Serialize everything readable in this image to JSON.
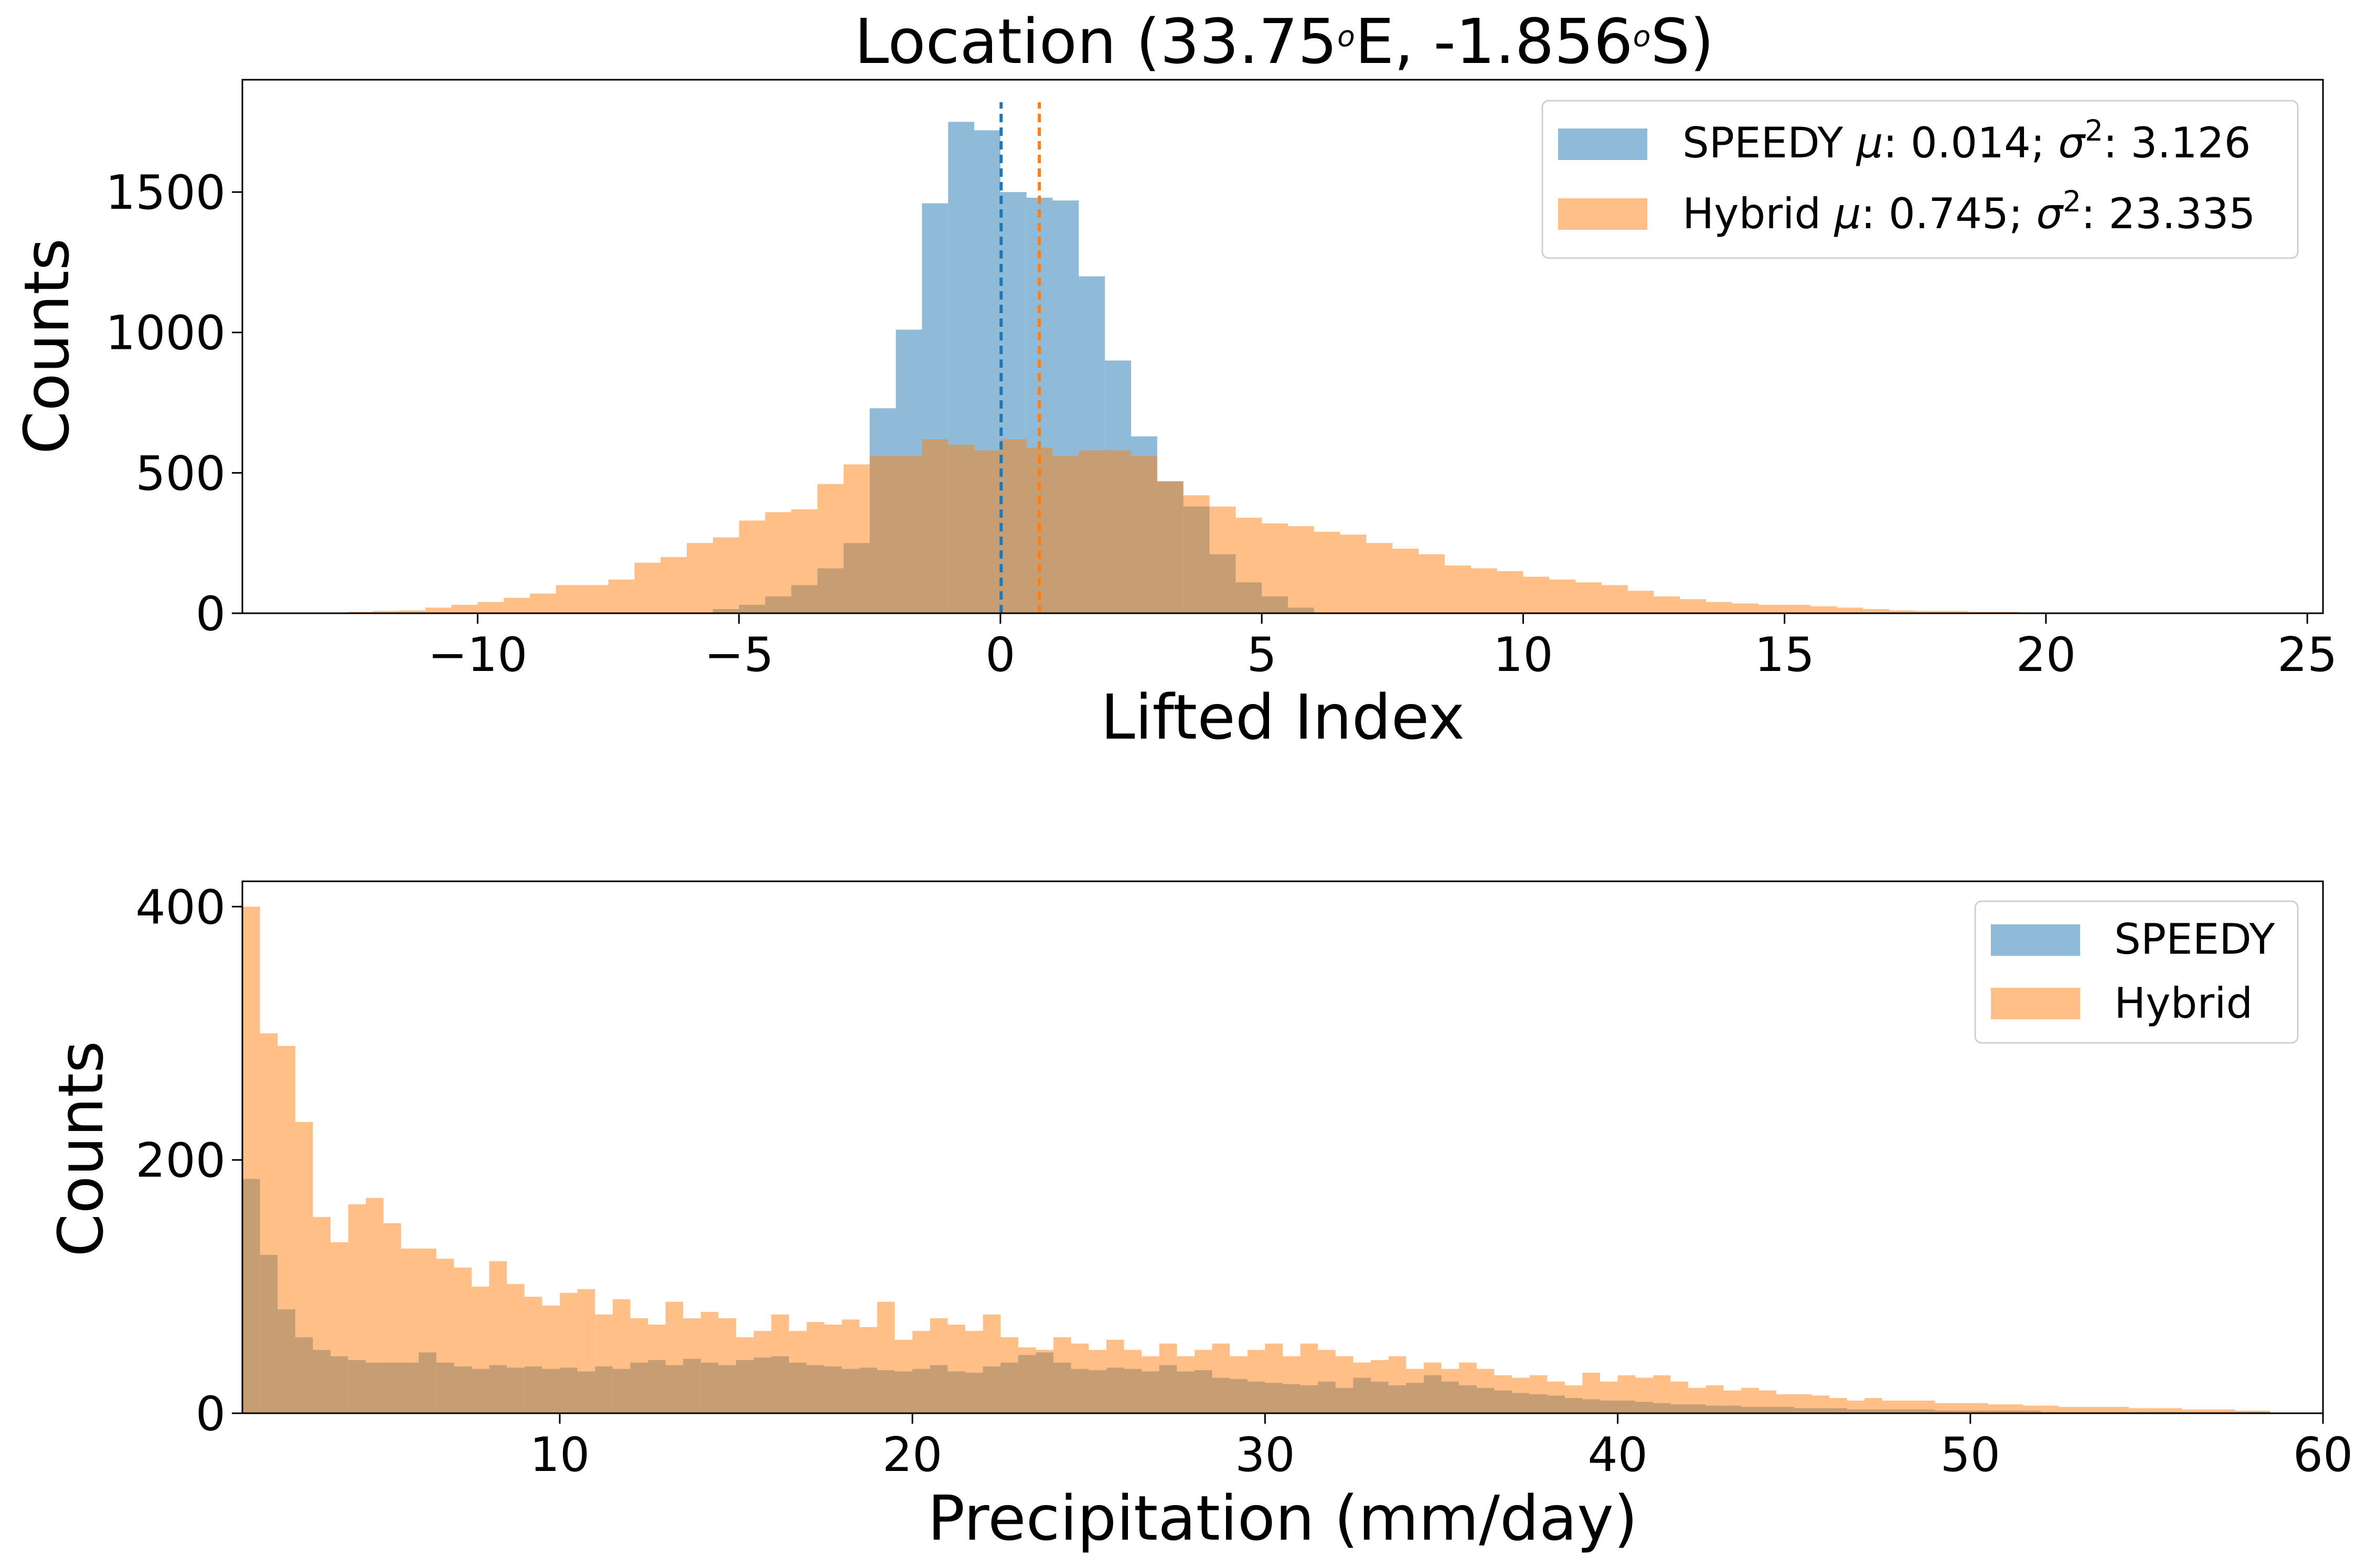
{
  "chart_data": [
    {
      "type": "histogram",
      "title": "Location (33.75°E, -1.856°S)",
      "title_parts": {
        "prefix": "Location (33.75",
        "sup1": "o",
        "mid": "E, -1.856",
        "sup2": "o",
        "suffix": "S)"
      },
      "xlabel": "Lifted Index",
      "ylabel": "Counts",
      "xlim": [
        -14.5,
        25.3
      ],
      "ylim": [
        0,
        1900
      ],
      "xticks": [
        -10,
        -5,
        0,
        5,
        10,
        15,
        20,
        25
      ],
      "xtick_labels": [
        "−10",
        "−5",
        "0",
        "5",
        "10",
        "15",
        "20",
        "25"
      ],
      "yticks": [
        0,
        500,
        1000,
        1500
      ],
      "ytick_labels": [
        "0",
        "500",
        "1000",
        "1500"
      ],
      "legend_position": "top-right",
      "series": [
        {
          "name": "SPEEDY",
          "legend_parts": {
            "name": "SPEEDY ",
            "mu": "μ",
            "mean_label": ": 0.014; ",
            "sigma": "σ",
            "sup": "2",
            "var_label": ": 3.126"
          },
          "color": "#1f77b4",
          "mean": 0.014,
          "variance": 3.126,
          "bin_edges": [
            -5.5,
            -5.0,
            -4.5,
            -4.0,
            -3.5,
            -3.0,
            -2.5,
            -2.0,
            -1.5,
            -1.0,
            -0.5,
            0.0,
            0.5,
            1.0,
            1.5,
            2.0,
            2.5,
            3.0,
            3.5,
            4.0,
            4.5,
            5.0,
            5.5,
            6.0
          ],
          "counts": [
            15,
            30,
            60,
            100,
            160,
            250,
            730,
            1010,
            1460,
            1750,
            1720,
            1500,
            1480,
            1470,
            1200,
            900,
            630,
            470,
            380,
            210,
            110,
            60,
            20
          ]
        },
        {
          "name": "Hybrid",
          "legend_parts": {
            "name": "Hybrid ",
            "mu": "μ",
            "mean_label": ": 0.745; ",
            "sigma": "σ",
            "sup": "2",
            "var_label": ": 23.335"
          },
          "color": "#ff7f0e",
          "mean": 0.745,
          "variance": 23.335,
          "bin_edges": [
            -12.5,
            -12.0,
            -11.5,
            -11.0,
            -10.5,
            -10.0,
            -9.5,
            -9.0,
            -8.5,
            -8.0,
            -7.5,
            -7.0,
            -6.5,
            -6.0,
            -5.5,
            -5.0,
            -4.5,
            -4.0,
            -3.5,
            -3.0,
            -2.5,
            -2.0,
            -1.5,
            -1.0,
            -0.5,
            0.0,
            0.5,
            1.0,
            1.5,
            2.0,
            2.5,
            3.0,
            3.5,
            4.0,
            4.5,
            5.0,
            5.5,
            6.0,
            6.5,
            7.0,
            7.5,
            8.0,
            8.5,
            9.0,
            9.5,
            10.0,
            10.5,
            11.0,
            11.5,
            12.0,
            12.5,
            13.0,
            13.5,
            14.0,
            14.5,
            15.0,
            15.5,
            16.0,
            16.5,
            17.0,
            17.5,
            18.0,
            18.5,
            19.0,
            19.5,
            20.0
          ],
          "counts": [
            5,
            8,
            10,
            20,
            30,
            40,
            55,
            70,
            100,
            100,
            120,
            180,
            200,
            250,
            270,
            330,
            360,
            370,
            460,
            530,
            560,
            560,
            620,
            600,
            580,
            620,
            590,
            560,
            580,
            580,
            560,
            470,
            420,
            380,
            340,
            320,
            310,
            290,
            280,
            250,
            230,
            210,
            170,
            160,
            150,
            130,
            120,
            110,
            100,
            80,
            60,
            50,
            40,
            35,
            30,
            30,
            25,
            20,
            15,
            10,
            8,
            8,
            5,
            5,
            3
          ]
        }
      ],
      "mean_lines": [
        {
          "series": "SPEEDY",
          "x": 0.014,
          "color": "#1f77b4"
        },
        {
          "series": "Hybrid",
          "x": 0.745,
          "color": "#ff7f0e"
        }
      ]
    },
    {
      "type": "histogram",
      "title": "",
      "xlabel": "Precipitation (mm/day)",
      "ylabel": "Counts",
      "xlim": [
        1,
        60
      ],
      "ylim": [
        0,
        420
      ],
      "xticks": [
        10,
        20,
        30,
        40,
        50,
        60
      ],
      "xtick_labels": [
        "10",
        "20",
        "30",
        "40",
        "50",
        "60"
      ],
      "yticks": [
        0,
        200,
        400
      ],
      "ytick_labels": [
        "0",
        "200",
        "400"
      ],
      "legend_position": "top-right",
      "bin_start": 1.0,
      "bin_width": 0.5,
      "series": [
        {
          "name": "SPEEDY",
          "color": "#1f77b4",
          "counts": [
            185,
            125,
            82,
            60,
            50,
            45,
            42,
            40,
            40,
            40,
            48,
            40,
            37,
            35,
            38,
            36,
            37,
            35,
            36,
            33,
            37,
            35,
            40,
            42,
            38,
            43,
            40,
            38,
            42,
            44,
            45,
            40,
            38,
            37,
            35,
            36,
            34,
            33,
            35,
            38,
            33,
            32,
            37,
            40,
            46,
            48,
            40,
            35,
            34,
            36,
            35,
            33,
            38,
            33,
            34,
            28,
            27,
            25,
            24,
            23,
            22,
            25,
            20,
            28,
            25,
            22,
            24,
            30,
            25,
            22,
            20,
            18,
            16,
            15,
            14,
            12,
            11,
            10,
            10,
            9,
            8,
            7,
            7,
            6,
            6,
            5,
            5,
            5,
            4,
            4,
            4,
            3,
            3,
            3,
            3,
            3,
            2,
            2,
            2,
            2,
            2,
            2,
            1,
            1,
            1,
            1,
            1,
            1,
            1,
            1,
            1,
            1,
            1,
            1,
            1
          ]
        },
        {
          "name": "Hybrid",
          "color": "#ff7f0e",
          "counts": [
            400,
            300,
            290,
            230,
            155,
            135,
            165,
            170,
            150,
            130,
            130,
            122,
            115,
            100,
            120,
            102,
            92,
            85,
            95,
            98,
            78,
            90,
            75,
            70,
            88,
            75,
            80,
            75,
            60,
            65,
            78,
            65,
            72,
            70,
            74,
            68,
            88,
            58,
            65,
            75,
            70,
            65,
            78,
            60,
            52,
            50,
            60,
            55,
            50,
            58,
            50,
            45,
            55,
            45,
            50,
            55,
            45,
            50,
            55,
            45,
            55,
            50,
            45,
            40,
            42,
            45,
            35,
            40,
            35,
            40,
            35,
            30,
            28,
            30,
            25,
            22,
            32,
            25,
            30,
            28,
            30,
            25,
            20,
            22,
            18,
            20,
            18,
            15,
            15,
            14,
            12,
            10,
            12,
            10,
            10,
            10,
            8,
            8,
            8,
            7,
            7,
            6,
            6,
            5,
            5,
            5,
            5,
            4,
            4,
            4,
            3,
            3,
            3,
            2,
            2
          ]
        }
      ]
    }
  ]
}
